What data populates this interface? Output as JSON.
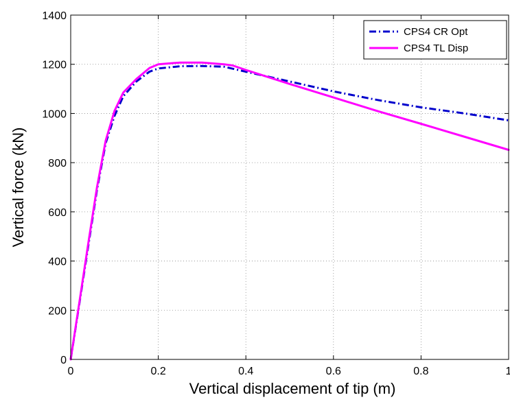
{
  "chart_data": {
    "type": "line",
    "title": "",
    "xlabel": "Vertical displacement of tip (m)",
    "ylabel": "Vertical force (kN)",
    "xlim": [
      0,
      1
    ],
    "ylim": [
      0,
      1400
    ],
    "xticks": [
      0,
      0.2,
      0.4,
      0.6,
      0.8,
      1
    ],
    "xtick_labels": [
      "0",
      "0.2",
      "0.4",
      "0.6",
      "0.8",
      "1"
    ],
    "yticks": [
      0,
      200,
      400,
      600,
      800,
      1000,
      1200,
      1400
    ],
    "ytick_labels": [
      "0",
      "200",
      "400",
      "600",
      "800",
      "1000",
      "1200",
      "1400"
    ],
    "grid": true,
    "legend_position": "top-right",
    "series": [
      {
        "name": "CPS4 CR Opt",
        "color": "#0000cc",
        "style": "dash-dot",
        "x": [
          0,
          0.02,
          0.04,
          0.06,
          0.08,
          0.1,
          0.12,
          0.15,
          0.18,
          0.2,
          0.25,
          0.3,
          0.35,
          0.4,
          0.5,
          0.6,
          0.7,
          0.8,
          0.9,
          1.0
        ],
        "y": [
          0,
          230,
          460,
          690,
          880,
          990,
          1070,
          1130,
          1170,
          1183,
          1192,
          1193,
          1190,
          1170,
          1130,
          1090,
          1055,
          1025,
          1000,
          972
        ]
      },
      {
        "name": "CPS4 TL Disp",
        "color": "#ff00ff",
        "style": "solid",
        "x": [
          0,
          0.02,
          0.04,
          0.06,
          0.08,
          0.1,
          0.12,
          0.15,
          0.18,
          0.2,
          0.25,
          0.3,
          0.35,
          0.37,
          0.4,
          0.5,
          0.6,
          0.7,
          0.8,
          0.9,
          1.0
        ],
        "y": [
          0,
          235,
          470,
          700,
          890,
          1010,
          1085,
          1140,
          1185,
          1200,
          1207,
          1207,
          1200,
          1195,
          1177,
          1120,
          1065,
          1010,
          958,
          905,
          852
        ]
      }
    ]
  }
}
